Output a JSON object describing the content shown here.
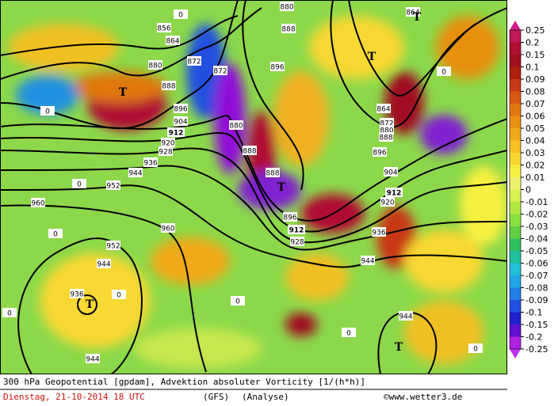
{
  "colorbar": {
    "ticks": [
      0.25,
      0.2,
      0.15,
      0.1,
      0.09,
      0.08,
      0.07,
      0.06,
      0.05,
      0.04,
      0.03,
      0.02,
      0.01,
      0,
      -0.01,
      -0.02,
      -0.03,
      -0.04,
      -0.05,
      -0.06,
      -0.07,
      -0.08,
      -0.09,
      -0.1,
      -0.15,
      -0.2,
      -0.25
    ],
    "colors": [
      "#c0185a",
      "#b01030",
      "#a01020",
      "#b02010",
      "#c83818",
      "#d85a10",
      "#e07810",
      "#e89010",
      "#f0a818",
      "#f8c020",
      "#f8d830",
      "#f8f040",
      "#f0f070",
      "#d8f050",
      "#b0e840",
      "#88e040",
      "#60d040",
      "#30c060",
      "#20c0a0",
      "#20c0d8",
      "#20a8e8",
      "#2080e8",
      "#2050e0",
      "#2020d0",
      "#6010d0",
      "#b020e0"
    ],
    "top_color": "#d0208a",
    "bottom_color": "#c030f0"
  },
  "contour_labels": [
    "856",
    "864",
    "872",
    "872",
    "880",
    "888",
    "896",
    "904",
    "912",
    "920",
    "928",
    "936",
    "944",
    "952",
    "960",
    "960",
    "952",
    "944",
    "936",
    "944",
    "880",
    "888",
    "896",
    "880",
    "888",
    "888",
    "896",
    "912",
    "928",
    "936",
    "944",
    "864",
    "872",
    "880",
    "888",
    "896",
    "904",
    "912",
    "920",
    "944",
    "864",
    "0",
    "0",
    "0",
    "0",
    "0",
    "0",
    "0",
    "0",
    "0",
    "0"
  ],
  "low_markers": [
    "T",
    "T",
    "T",
    "T",
    "T",
    "T"
  ],
  "caption": {
    "title": "300 hPa Geopotential [gpdam], Advektion absoluter Vorticity [1/(h*h)]",
    "date": "Dienstag, 21-10-2014  18 UTC",
    "model": "(GFS)",
    "mode": "(Analyse)",
    "credit": "©www.wetter3.de"
  }
}
